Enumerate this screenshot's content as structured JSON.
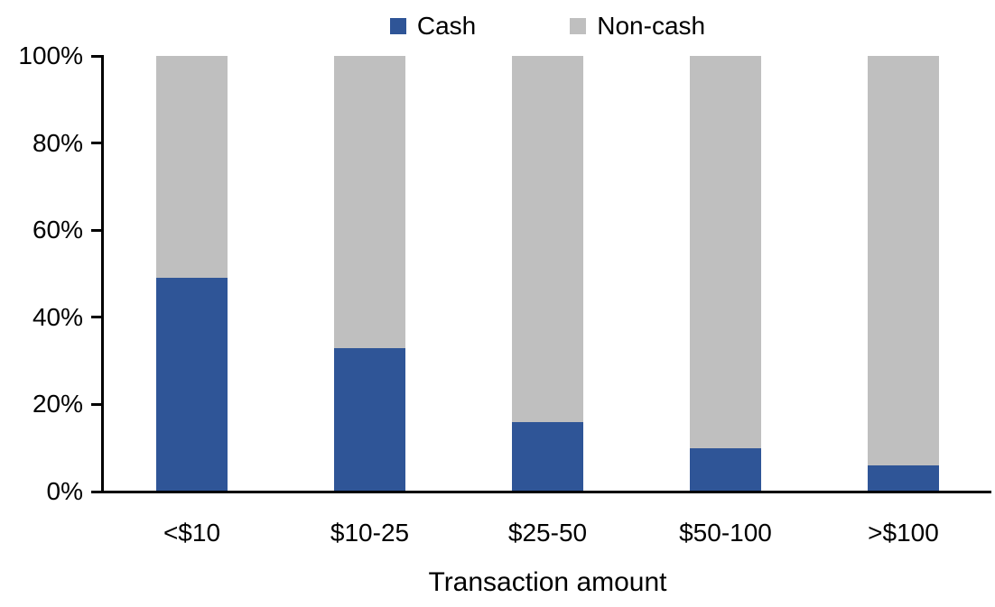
{
  "chart_data": {
    "type": "bar",
    "stacked": true,
    "title": "",
    "xlabel": "Transaction amount",
    "ylabel": "",
    "categories": [
      "<$10",
      "$10-25",
      "$25-50",
      "$50-100",
      ">$100"
    ],
    "series": [
      {
        "name": "Cash",
        "color": "#2F5597",
        "values": [
          49,
          33,
          16,
          10,
          6
        ]
      },
      {
        "name": "Non-cash",
        "color": "#BFBFBF",
        "values": [
          51,
          67,
          84,
          90,
          94
        ]
      }
    ],
    "ylim": [
      0,
      100
    ],
    "y_ticks": [
      "0%",
      "20%",
      "40%",
      "60%",
      "80%",
      "100%"
    ],
    "grid": false,
    "legend_position": "top-center",
    "axis_color": "#000000",
    "text_color": "#000000",
    "background": "#FFFFFF"
  }
}
